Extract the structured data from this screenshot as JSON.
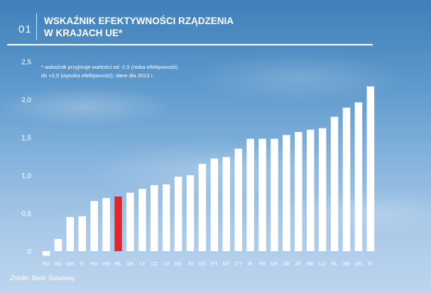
{
  "header": {
    "figure_number": "01",
    "title_line1": "WSKAŹNIK EFEKTYWNOŚCI RZĄDZENIA",
    "title_line2": "W KRAJACH UE*"
  },
  "note": {
    "line1": "* wskaźnik przyjmuje wartości od -2,5 (niska efektywność)",
    "line2": "do +2,5 (wysoka efektywność); dane dla 2013 r."
  },
  "source": "Źródło: Bank Światowy.",
  "colors": {
    "bar": "#ffffff",
    "highlight": "#e2262c",
    "text": "#ffffff"
  },
  "chart_data": {
    "type": "bar",
    "title": "WSKAŹNIK EFEKTYWNOŚCI RZĄDZENIA W KRAJACH UE*",
    "categories": [
      "RO",
      "BG",
      "GR",
      "IT",
      "HU",
      "HR",
      "PL",
      "SK",
      "LT",
      "CZ",
      "LV",
      "EE",
      "SI",
      "ES",
      "PT",
      "MT",
      "CY",
      "IE",
      "FR",
      "UK",
      "DE",
      "AT",
      "BE",
      "LU",
      "NL",
      "SE",
      "DK",
      "FI"
    ],
    "values": [
      -0.06,
      0.16,
      0.45,
      0.46,
      0.66,
      0.7,
      0.72,
      0.77,
      0.82,
      0.87,
      0.88,
      0.98,
      1.0,
      1.15,
      1.22,
      1.24,
      1.35,
      1.48,
      1.48,
      1.48,
      1.53,
      1.57,
      1.6,
      1.62,
      1.77,
      1.89,
      1.96,
      2.17
    ],
    "highlight": "PL",
    "yticks": [
      "0",
      "0,5",
      "1,0",
      "1,5",
      "2,0",
      "2,5"
    ],
    "ytick_values": [
      0,
      0.5,
      1.0,
      1.5,
      2.0,
      2.5
    ],
    "ylim": [
      -0.1,
      2.5
    ],
    "grid": false,
    "xlabel": "",
    "ylabel": ""
  }
}
